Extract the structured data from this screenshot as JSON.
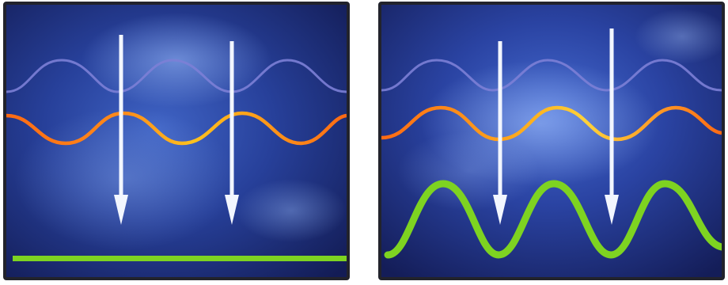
{
  "panels": [
    {
      "id": "left",
      "green_wave": "flat"
    },
    {
      "id": "right",
      "green_wave": "oscillating"
    }
  ],
  "colors": {
    "background_dark": "#16225e",
    "background_mid": "#2a46a8",
    "background_light": "#7fa0e6",
    "blue_wave": "#7c7fd6",
    "orange_wave": "#ff7a1a",
    "orange_wave_highlight": "#ffd23a",
    "green_wave": "#7ed321",
    "arrow": "#f2f6ff"
  },
  "icons": [
    "down-arrow-icon"
  ]
}
